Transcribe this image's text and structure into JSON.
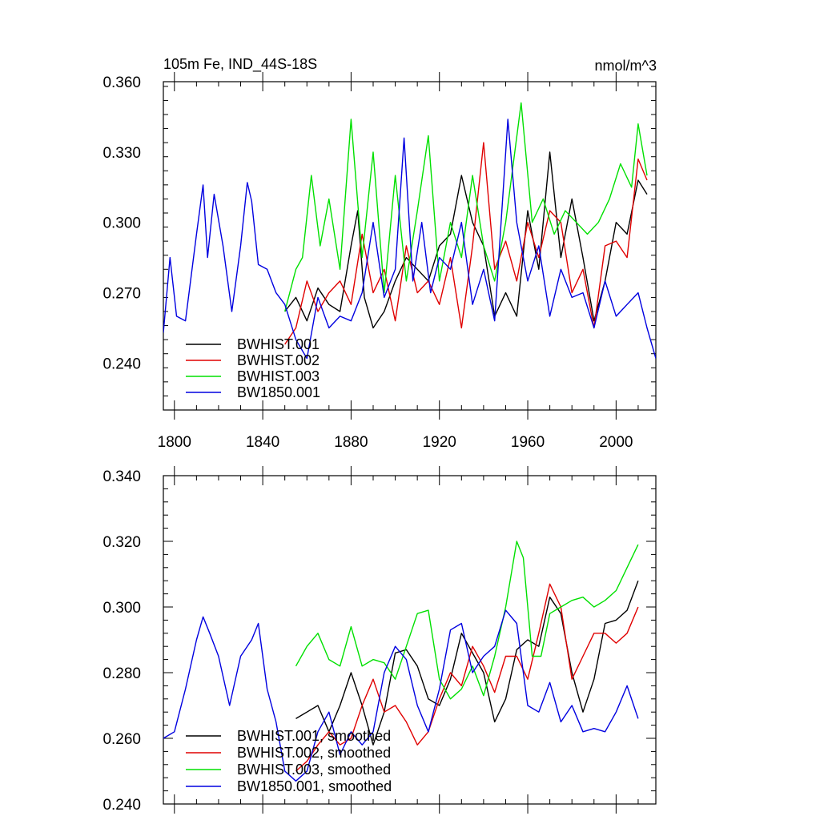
{
  "colors": {
    "BWHIST.001": "#000000",
    "BWHIST.002": "#e00000",
    "BWHIST.003": "#00e000",
    "BW1850.001": "#0000e0"
  },
  "chart_data": [
    {
      "type": "line",
      "title": "105m Fe, IND_44S-18S",
      "units": "nmol/m^3",
      "xlabel": "",
      "ylabel": "",
      "xlim": [
        1795,
        2018
      ],
      "ylim": [
        0.22,
        0.36
      ],
      "xticks": [
        "1800",
        "1840",
        "1880",
        "1920",
        "1960",
        "2000"
      ],
      "yticks": [
        "0.360",
        "0.330",
        "0.300",
        "0.270",
        "0.240"
      ],
      "legend_position": "bottom-left",
      "series": [
        {
          "name": "BWHIST.001",
          "x": [
            1850,
            1855,
            1860,
            1865,
            1870,
            1875,
            1880,
            1883,
            1886,
            1890,
            1895,
            1900,
            1905,
            1910,
            1915,
            1920,
            1925,
            1930,
            1935,
            1940,
            1945,
            1950,
            1955,
            1960,
            1965,
            1970,
            1975,
            1980,
            1985,
            1990,
            1995,
            2000,
            2005,
            2010,
            2014
          ],
          "values": [
            0.262,
            0.268,
            0.258,
            0.272,
            0.265,
            0.262,
            0.29,
            0.305,
            0.268,
            0.255,
            0.262,
            0.275,
            0.285,
            0.28,
            0.275,
            0.29,
            0.295,
            0.32,
            0.3,
            0.29,
            0.26,
            0.27,
            0.26,
            0.305,
            0.28,
            0.33,
            0.285,
            0.31,
            0.285,
            0.258,
            0.275,
            0.3,
            0.295,
            0.318,
            0.312
          ]
        },
        {
          "name": "BWHIST.002",
          "x": [
            1850,
            1855,
            1860,
            1865,
            1870,
            1875,
            1880,
            1885,
            1890,
            1895,
            1900,
            1905,
            1910,
            1915,
            1920,
            1925,
            1930,
            1935,
            1940,
            1945,
            1950,
            1955,
            1960,
            1965,
            1970,
            1975,
            1980,
            1985,
            1990,
            1995,
            2000,
            2005,
            2010,
            2014
          ],
          "values": [
            0.248,
            0.255,
            0.275,
            0.262,
            0.27,
            0.275,
            0.265,
            0.295,
            0.27,
            0.28,
            0.258,
            0.29,
            0.27,
            0.275,
            0.265,
            0.285,
            0.255,
            0.29,
            0.334,
            0.28,
            0.292,
            0.275,
            0.3,
            0.285,
            0.305,
            0.3,
            0.27,
            0.28,
            0.255,
            0.29,
            0.292,
            0.285,
            0.327,
            0.318
          ]
        },
        {
          "name": "BWHIST.003",
          "x": [
            1850,
            1855,
            1858,
            1862,
            1866,
            1870,
            1875,
            1880,
            1885,
            1890,
            1895,
            1900,
            1905,
            1910,
            1915,
            1920,
            1925,
            1930,
            1935,
            1940,
            1945,
            1950,
            1957,
            1962,
            1967,
            1972,
            1977,
            1982,
            1987,
            1992,
            1997,
            2002,
            2007,
            2010,
            2014
          ],
          "values": [
            0.262,
            0.28,
            0.285,
            0.32,
            0.29,
            0.31,
            0.28,
            0.344,
            0.285,
            0.33,
            0.27,
            0.32,
            0.275,
            0.305,
            0.337,
            0.275,
            0.3,
            0.285,
            0.32,
            0.29,
            0.275,
            0.3,
            0.351,
            0.3,
            0.31,
            0.295,
            0.305,
            0.3,
            0.295,
            0.3,
            0.31,
            0.325,
            0.315,
            0.342,
            0.32
          ]
        },
        {
          "name": "BW1850.001",
          "x": [
            1795,
            1798,
            1801,
            1805,
            1810,
            1813,
            1815,
            1818,
            1822,
            1826,
            1830,
            1833,
            1835,
            1838,
            1842,
            1846,
            1850,
            1855,
            1860,
            1865,
            1870,
            1875,
            1880,
            1885,
            1890,
            1895,
            1900,
            1904,
            1908,
            1912,
            1916,
            1920,
            1925,
            1930,
            1935,
            1940,
            1945,
            1951,
            1955,
            1960,
            1965,
            1970,
            1975,
            1980,
            1985,
            1990,
            1995,
            2000,
            2005,
            2010,
            2014,
            2018
          ],
          "values": [
            0.253,
            0.285,
            0.26,
            0.258,
            0.295,
            0.316,
            0.285,
            0.312,
            0.29,
            0.262,
            0.29,
            0.317,
            0.309,
            0.282,
            0.28,
            0.27,
            0.265,
            0.25,
            0.242,
            0.268,
            0.255,
            0.26,
            0.258,
            0.27,
            0.3,
            0.268,
            0.28,
            0.336,
            0.275,
            0.3,
            0.27,
            0.285,
            0.28,
            0.3,
            0.265,
            0.28,
            0.258,
            0.344,
            0.3,
            0.275,
            0.29,
            0.26,
            0.28,
            0.268,
            0.27,
            0.255,
            0.275,
            0.26,
            0.265,
            0.27,
            0.255,
            0.242
          ]
        }
      ],
      "legend": [
        "BWHIST.001",
        "BWHIST.002",
        "BWHIST.003",
        "BW1850.001"
      ]
    },
    {
      "type": "line",
      "title": "",
      "xlabel": "",
      "ylabel": "",
      "xlim": [
        1795,
        2018
      ],
      "ylim": [
        0.24,
        0.34
      ],
      "yticks": [
        "0.340",
        "0.320",
        "0.300",
        "0.280",
        "0.260",
        "0.240"
      ],
      "legend_position": "bottom-left",
      "series": [
        {
          "name": "BWHIST.001, smoothed",
          "x": [
            1855,
            1860,
            1865,
            1870,
            1875,
            1880,
            1885,
            1890,
            1895,
            1900,
            1905,
            1910,
            1915,
            1920,
            1925,
            1930,
            1935,
            1940,
            1945,
            1950,
            1955,
            1960,
            1965,
            1970,
            1975,
            1980,
            1985,
            1990,
            1995,
            2000,
            2005,
            2010
          ],
          "values": [
            0.266,
            0.268,
            0.27,
            0.262,
            0.27,
            0.28,
            0.27,
            0.258,
            0.268,
            0.286,
            0.287,
            0.282,
            0.272,
            0.27,
            0.278,
            0.292,
            0.286,
            0.28,
            0.265,
            0.272,
            0.287,
            0.29,
            0.288,
            0.303,
            0.298,
            0.28,
            0.268,
            0.278,
            0.295,
            0.296,
            0.299,
            0.308
          ]
        },
        {
          "name": "BWHIST.002, smoothed",
          "x": [
            1855,
            1860,
            1865,
            1870,
            1875,
            1880,
            1885,
            1890,
            1895,
            1900,
            1905,
            1910,
            1915,
            1920,
            1925,
            1930,
            1935,
            1940,
            1945,
            1950,
            1955,
            1960,
            1965,
            1970,
            1975,
            1980,
            1985,
            1990,
            1995,
            2000,
            2005,
            2010
          ],
          "values": [
            0.25,
            0.253,
            0.258,
            0.262,
            0.258,
            0.26,
            0.27,
            0.278,
            0.268,
            0.27,
            0.265,
            0.258,
            0.262,
            0.272,
            0.28,
            0.276,
            0.288,
            0.282,
            0.274,
            0.285,
            0.285,
            0.278,
            0.292,
            0.307,
            0.3,
            0.278,
            0.285,
            0.292,
            0.292,
            0.289,
            0.292,
            0.3
          ]
        },
        {
          "name": "BWHIST.003, smoothed",
          "x": [
            1855,
            1860,
            1865,
            1870,
            1875,
            1880,
            1885,
            1890,
            1895,
            1900,
            1905,
            1910,
            1915,
            1920,
            1925,
            1930,
            1935,
            1940,
            1945,
            1950,
            1955,
            1958,
            1962,
            1966,
            1970,
            1975,
            1980,
            1985,
            1990,
            1995,
            2000,
            2005,
            2010
          ],
          "values": [
            0.282,
            0.288,
            0.292,
            0.284,
            0.282,
            0.294,
            0.282,
            0.284,
            0.283,
            0.278,
            0.288,
            0.298,
            0.299,
            0.278,
            0.272,
            0.275,
            0.282,
            0.273,
            0.285,
            0.3,
            0.32,
            0.315,
            0.285,
            0.285,
            0.298,
            0.3,
            0.302,
            0.303,
            0.3,
            0.302,
            0.305,
            0.312,
            0.319
          ]
        },
        {
          "name": "BW1850.001, smoothed",
          "x": [
            1795,
            1800,
            1805,
            1810,
            1813,
            1816,
            1820,
            1825,
            1830,
            1835,
            1838,
            1842,
            1846,
            1850,
            1855,
            1860,
            1865,
            1870,
            1875,
            1880,
            1885,
            1890,
            1895,
            1900,
            1905,
            1910,
            1915,
            1920,
            1925,
            1930,
            1935,
            1940,
            1945,
            1950,
            1955,
            1960,
            1965,
            1970,
            1975,
            1980,
            1985,
            1990,
            1995,
            2000,
            2005,
            2010
          ],
          "values": [
            0.26,
            0.262,
            0.275,
            0.29,
            0.297,
            0.292,
            0.285,
            0.27,
            0.285,
            0.29,
            0.295,
            0.275,
            0.265,
            0.25,
            0.247,
            0.25,
            0.262,
            0.268,
            0.255,
            0.262,
            0.258,
            0.262,
            0.28,
            0.288,
            0.284,
            0.27,
            0.262,
            0.275,
            0.293,
            0.295,
            0.28,
            0.285,
            0.288,
            0.299,
            0.295,
            0.27,
            0.268,
            0.277,
            0.265,
            0.27,
            0.262,
            0.263,
            0.262,
            0.268,
            0.276,
            0.266
          ]
        }
      ],
      "legend": [
        "BWHIST.001, smoothed",
        "BWHIST.002, smoothed",
        "BWHIST.003, smoothed",
        "BW1850.001, smoothed"
      ]
    }
  ]
}
